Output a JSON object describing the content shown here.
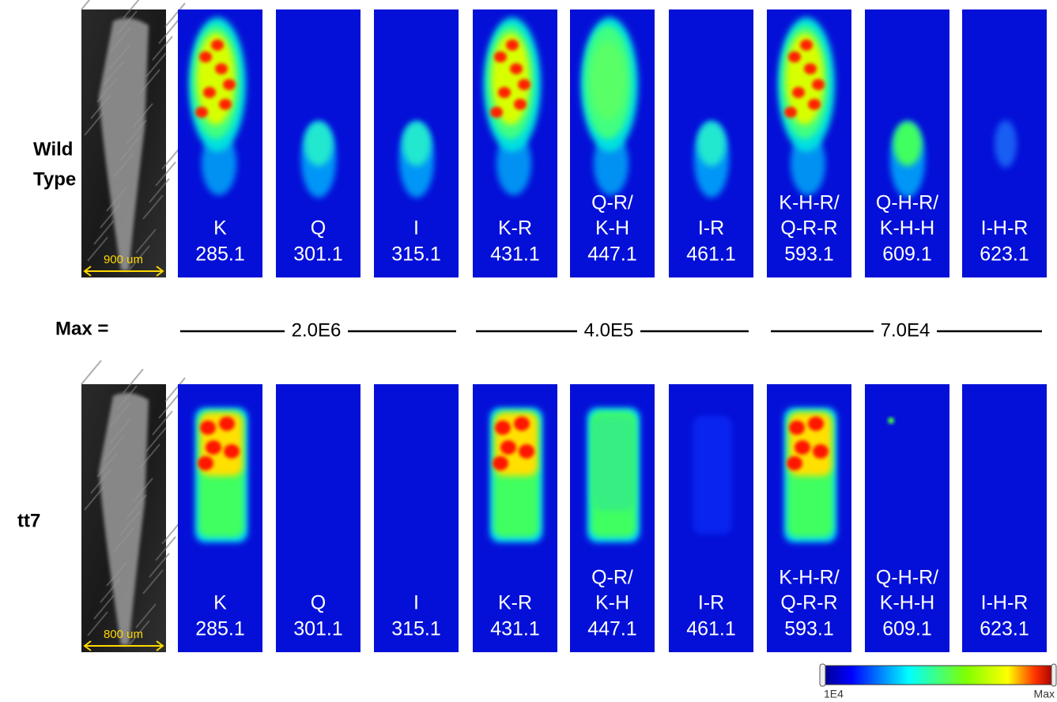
{
  "rows": [
    {
      "label": [
        "Wild",
        "Type"
      ],
      "scale_bar": "900 um",
      "panels": [
        {
          "label": [
            "K"
          ],
          "mz": "285.1"
        },
        {
          "label": [
            "Q"
          ],
          "mz": "301.1"
        },
        {
          "label": [
            "I"
          ],
          "mz": "315.1"
        },
        {
          "label": [
            "K-R"
          ],
          "mz": "431.1"
        },
        {
          "label": [
            "Q-R/",
            "K-H"
          ],
          "mz": "447.1"
        },
        {
          "label": [
            "I-R"
          ],
          "mz": "461.1"
        },
        {
          "label": [
            "K-H-R/",
            "Q-R-R"
          ],
          "mz": "593.1"
        },
        {
          "label": [
            "Q-H-R/",
            "K-H-H"
          ],
          "mz": "609.1"
        },
        {
          "label": [
            "I-H-R"
          ],
          "mz": "623.1"
        }
      ]
    },
    {
      "label": [
        "tt7"
      ],
      "scale_bar": "800 um",
      "panels": [
        {
          "label": [
            "K"
          ],
          "mz": "285.1"
        },
        {
          "label": [
            "Q"
          ],
          "mz": "301.1"
        },
        {
          "label": [
            "I"
          ],
          "mz": "315.1"
        },
        {
          "label": [
            "K-R"
          ],
          "mz": "431.1"
        },
        {
          "label": [
            "Q-R/",
            "K-H"
          ],
          "mz": "447.1"
        },
        {
          "label": [
            "I-R"
          ],
          "mz": "461.1"
        },
        {
          "label": [
            "K-H-R/",
            "Q-R-R"
          ],
          "mz": "593.1"
        },
        {
          "label": [
            "Q-H-R/",
            "K-H-H"
          ],
          "mz": "609.1"
        },
        {
          "label": [
            "I-H-R"
          ],
          "mz": "623.1"
        }
      ]
    }
  ],
  "max_row": {
    "label": "Max =",
    "values": [
      "2.0E6",
      "4.0E5",
      "7.0E4"
    ]
  },
  "colorbar": {
    "min": "1E4",
    "max": "Max"
  }
}
